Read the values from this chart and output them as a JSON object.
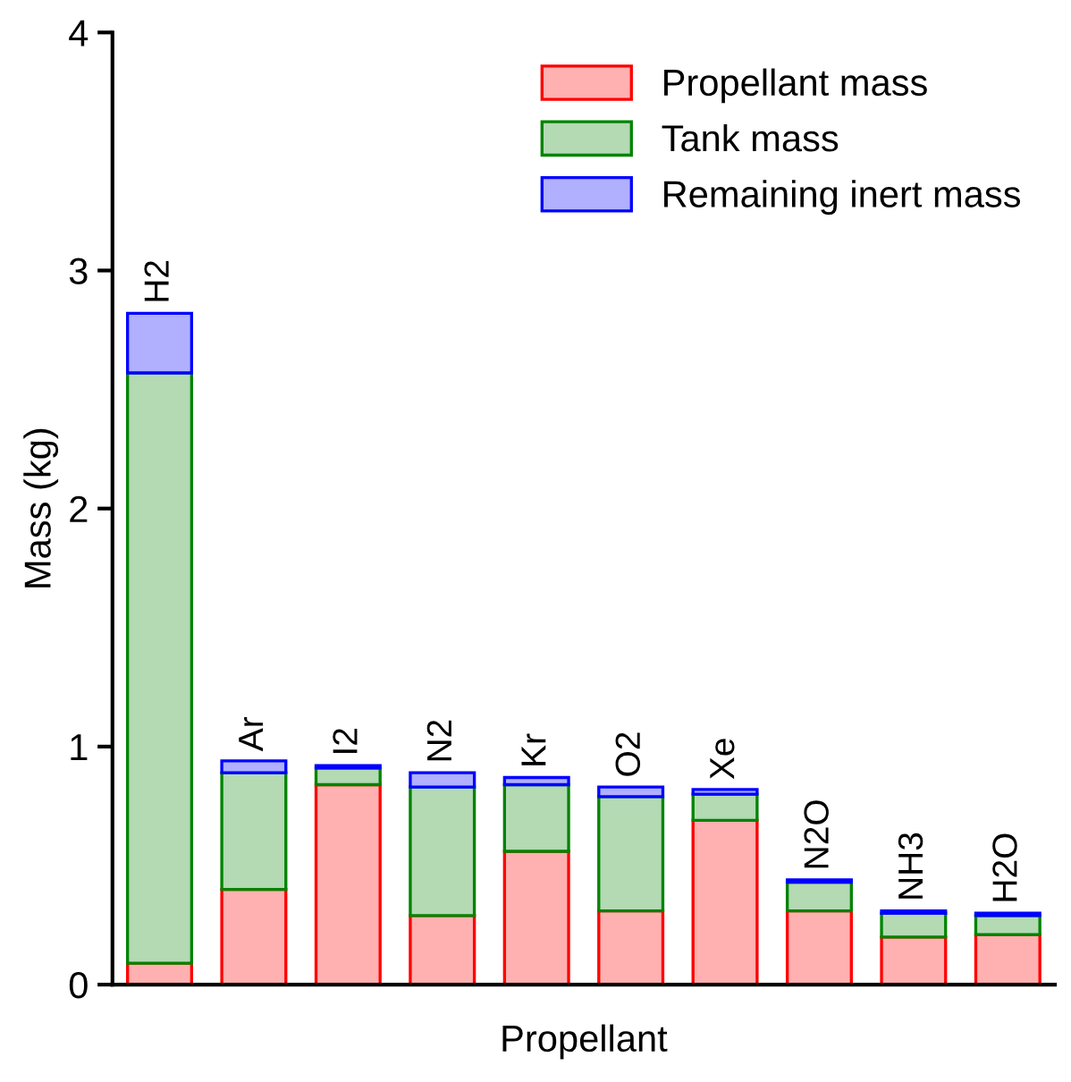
{
  "chart_data": {
    "type": "bar",
    "stacked": true,
    "xlabel": "Propellant",
    "ylabel": "Mass (kg)",
    "categories": [
      "H2",
      "Ar",
      "I2",
      "N2",
      "Kr",
      "O2",
      "Xe",
      "N2O",
      "NH3",
      "H2O"
    ],
    "series": [
      {
        "name": "Propellant mass",
        "color": "#ffb0b0",
        "values": [
          0.09,
          0.4,
          0.84,
          0.29,
          0.56,
          0.31,
          0.69,
          0.31,
          0.2,
          0.21
        ]
      },
      {
        "name": "Tank mass",
        "color": "#b3dab3",
        "values": [
          2.48,
          0.49,
          0.07,
          0.54,
          0.28,
          0.48,
          0.11,
          0.12,
          0.1,
          0.08
        ]
      },
      {
        "name": "Remaining inert mass",
        "color": "#b0b0ff",
        "values": [
          0.25,
          0.05,
          0.01,
          0.06,
          0.03,
          0.04,
          0.02,
          0.01,
          0.01,
          0.01
        ]
      }
    ],
    "ylim": [
      0,
      4
    ],
    "yticks": [
      0,
      1,
      2,
      3,
      4
    ],
    "grid": false,
    "legend": "top right",
    "tick_labels": "y"
  }
}
